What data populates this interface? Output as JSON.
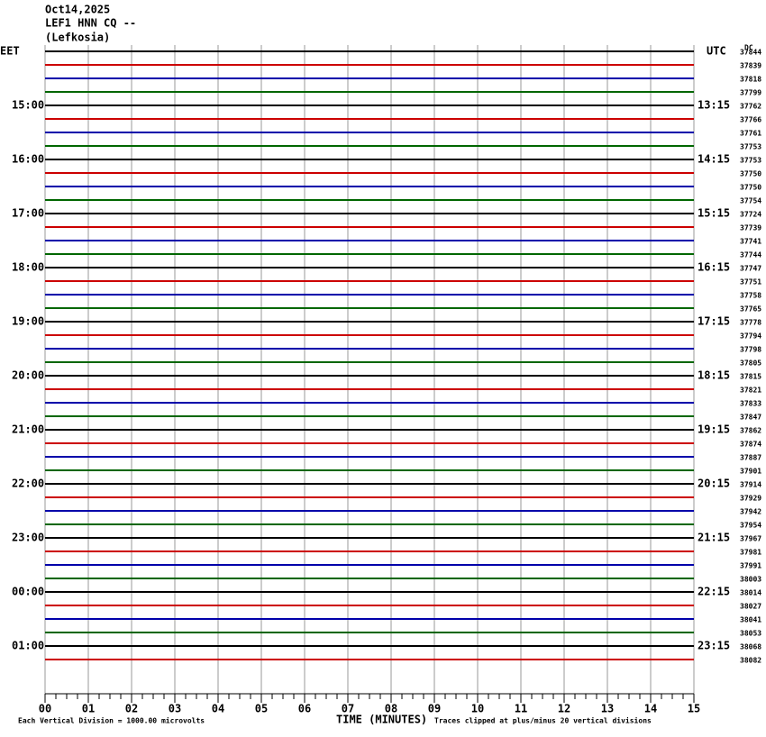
{
  "header": {
    "date": "Oct14,2025",
    "station": "LEF1 HNN CQ --",
    "location": "(Lefkosia)"
  },
  "left_axis": {
    "title": "EET",
    "labels": [
      "15:00",
      "16:00",
      "17:00",
      "18:00",
      "19:00",
      "20:00",
      "21:00",
      "22:00",
      "23:00",
      "00:00",
      "01:00"
    ]
  },
  "right_axis": {
    "title": "UTC",
    "labels": [
      "13:15",
      "14:15",
      "15:15",
      "16:15",
      "17:15",
      "18:15",
      "19:15",
      "20:15",
      "21:15",
      "22:15",
      "23:15"
    ]
  },
  "trace_ids_title": "DC",
  "trace_ids": [
    37844,
    37839,
    37818,
    37799,
    37762,
    37766,
    37761,
    37753,
    37753,
    37750,
    37750,
    37754,
    37724,
    37739,
    37741,
    37744,
    37747,
    37751,
    37758,
    37765,
    37778,
    37794,
    37798,
    37805,
    37815,
    37821,
    37833,
    37847,
    37862,
    37874,
    37887,
    37901,
    37914,
    37929,
    37942,
    37954,
    37967,
    37981,
    37991,
    38003,
    38014,
    38027,
    38041,
    38053,
    38068,
    38082
  ],
  "trace_colors": [
    "#000000",
    "#cc0000",
    "#0000aa",
    "#006600"
  ],
  "x_axis": {
    "title": "TIME (MINUTES)",
    "ticks": [
      "00",
      "01",
      "02",
      "03",
      "04",
      "05",
      "06",
      "07",
      "08",
      "09",
      "10",
      "11",
      "12",
      "13",
      "14",
      "15"
    ]
  },
  "footer": {
    "scale": "Each Vertical Division = 1000.00 microvolts",
    "clip": "Traces clipped at plus/minus 20 vertical divisions"
  }
}
